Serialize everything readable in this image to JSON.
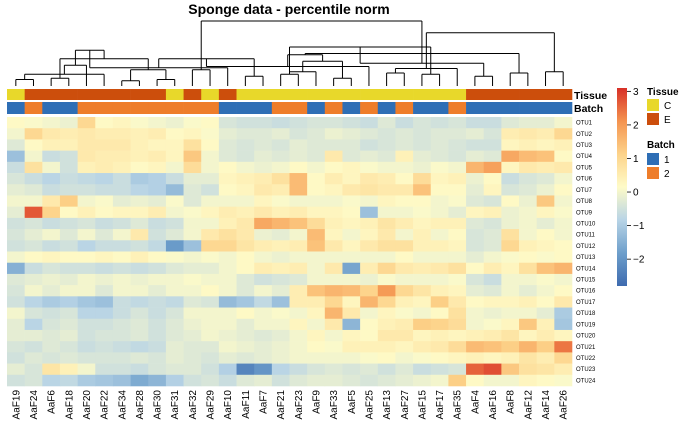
{
  "chart_data": {
    "type": "heatmap",
    "title": "Sponge data - percentile norm",
    "columns": [
      "AaF19",
      "AaF24",
      "AaF6",
      "AaF18",
      "AaF20",
      "AaF22",
      "AaF34",
      "AaF28",
      "AaF30",
      "AaF31",
      "AaF32",
      "AaF29",
      "AaF10",
      "AaF11",
      "AaF7",
      "AaF21",
      "AaF23",
      "AaF9",
      "AaF33",
      "AaF5",
      "AaF25",
      "AaF13",
      "AaF27",
      "AaF15",
      "AaF17",
      "AaF35",
      "AaF4",
      "AaF16",
      "AaF8",
      "AaF12",
      "AaF14",
      "AaF26"
    ],
    "rows": [
      "OTU1",
      "OTU2",
      "OTU3",
      "OTU4",
      "OTU5",
      "OTU6",
      "OTU7",
      "OTU8",
      "OTU9",
      "OTU10",
      "OTU11",
      "OTU12",
      "OTU13",
      "OTU14",
      "OTU15",
      "OTU16",
      "OTU17",
      "OTU18",
      "OTU19",
      "OTU20",
      "OTU21",
      "OTU22",
      "OTU23",
      "OTU24"
    ],
    "values": [
      [
        0.2,
        0.1,
        0.0,
        -0.1,
        1.0,
        0.2,
        0.3,
        0.1,
        0.0,
        -0.1,
        0.1,
        0.2,
        -0.4,
        -0.5,
        -0.5,
        -0.6,
        -0.5,
        -0.4,
        -0.4,
        -0.5,
        -0.6,
        -0.3,
        -0.6,
        -0.4,
        -0.5,
        -0.4,
        -0.6,
        -0.6,
        -0.3,
        -0.2,
        -0.2,
        0.0
      ],
      [
        0.0,
        1.0,
        0.6,
        0.5,
        0.6,
        0.5,
        0.5,
        0.4,
        0.5,
        0.2,
        0.3,
        0.1,
        -0.2,
        -0.3,
        -0.3,
        -0.2,
        -0.4,
        -0.3,
        -0.1,
        -0.2,
        -0.3,
        -0.4,
        -0.3,
        -0.4,
        -0.3,
        -0.3,
        -0.2,
        -0.4,
        0.5,
        0.6,
        0.5,
        1.0
      ],
      [
        -0.3,
        0.2,
        0.4,
        0.4,
        0.6,
        0.6,
        0.6,
        0.4,
        0.3,
        0.3,
        0.8,
        0.2,
        -0.3,
        -0.4,
        -0.3,
        -0.4,
        -0.2,
        -0.3,
        -0.3,
        -0.3,
        -0.5,
        -0.4,
        -0.3,
        -0.4,
        -0.3,
        -0.4,
        -0.5,
        -0.5,
        0.3,
        0.4,
        0.3,
        0.4
      ],
      [
        -1.2,
        0.0,
        -0.6,
        -0.5,
        0.6,
        0.5,
        0.5,
        0.4,
        0.5,
        0.3,
        1.3,
        0.0,
        -0.3,
        -0.4,
        -0.2,
        -0.3,
        -0.2,
        -0.3,
        0.6,
        -0.3,
        -0.2,
        -0.3,
        0.4,
        -0.2,
        -0.3,
        -0.4,
        -0.2,
        -0.3,
        1.8,
        1.5,
        1.4,
        0.2
      ],
      [
        -0.6,
        0.8,
        0.0,
        -0.5,
        0.4,
        0.5,
        0.4,
        0.2,
        0.3,
        0.0,
        0.9,
        0.0,
        0.2,
        0.0,
        -0.1,
        0.0,
        0.2,
        0.0,
        0.2,
        0.3,
        0.1,
        0.0,
        0.0,
        -0.1,
        0.1,
        0.0,
        1.6,
        1.9,
        0.3,
        0.6,
        0.5,
        0.6
      ],
      [
        -0.4,
        -0.6,
        -0.8,
        -0.6,
        -0.7,
        -0.8,
        -0.6,
        -1.0,
        -0.9,
        -0.6,
        -0.2,
        -0.2,
        0.3,
        0.4,
        0.5,
        0.8,
        1.5,
        0.2,
        0.5,
        0.3,
        0.6,
        0.5,
        0.2,
        0.9,
        0.3,
        0.4,
        -0.1,
        0.2,
        -0.6,
        -0.4,
        -0.3,
        0.0
      ],
      [
        -0.2,
        -0.3,
        -0.6,
        -0.5,
        -0.5,
        -0.6,
        -0.6,
        -0.8,
        -0.9,
        -1.3,
        -0.3,
        -0.5,
        0.2,
        0.3,
        0.6,
        0.5,
        1.5,
        0.2,
        0.3,
        0.6,
        0.7,
        0.6,
        0.6,
        1.4,
        0.2,
        0.2,
        -0.2,
        0.3,
        -0.4,
        -0.3,
        -0.1,
        0.2
      ],
      [
        0.0,
        0.0,
        0.6,
        1.2,
        0.0,
        0.1,
        -0.2,
        -0.1,
        -0.2,
        0.1,
        -0.3,
        0.0,
        0.0,
        0.0,
        0.3,
        0.1,
        0.0,
        0.0,
        0.0,
        0.1,
        0.0,
        0.3,
        0.2,
        0.2,
        0.0,
        0.1,
        -0.3,
        -0.4,
        0.2,
        -0.1,
        1.3,
        0.0
      ],
      [
        -0.2,
        2.7,
        1.1,
        0.2,
        0.4,
        0.2,
        0.3,
        0.3,
        0.5,
        0.0,
        0.1,
        0.3,
        0.5,
        0.4,
        0.6,
        0.4,
        0.5,
        0.3,
        0.3,
        0.2,
        -1.2,
        0.0,
        0.0,
        0.1,
        0.0,
        -0.2,
        0.3,
        0.4,
        -0.1,
        0.0,
        0.3,
        0.1
      ],
      [
        -0.5,
        -0.4,
        -0.6,
        -0.5,
        -0.4,
        -0.6,
        -0.5,
        -0.3,
        -0.6,
        -0.5,
        0.0,
        0.0,
        0.4,
        0.6,
        1.8,
        1.6,
        1.4,
        0.9,
        0.4,
        0.3,
        0.4,
        0.7,
        0.5,
        0.3,
        0.4,
        0.4,
        -0.3,
        -0.4,
        -0.1,
        0.0,
        -0.2,
        0.0
      ],
      [
        -0.4,
        -0.2,
        0.0,
        -0.3,
        0.0,
        -0.3,
        0.0,
        0.6,
        -0.5,
        -0.3,
        0.0,
        0.6,
        0.8,
        0.6,
        -0.1,
        -0.2,
        0.0,
        1.5,
        0.3,
        0.0,
        0.3,
        0.6,
        0.0,
        0.4,
        0.0,
        0.2,
        -0.4,
        -0.3,
        0.8,
        0.0,
        0.2,
        0.0
      ],
      [
        -0.5,
        -0.4,
        -0.6,
        -0.5,
        -0.8,
        -0.6,
        -0.6,
        -0.5,
        -0.7,
        -1.9,
        -1.2,
        1.0,
        1.0,
        0.7,
        0.5,
        0.4,
        0.5,
        1.4,
        0.6,
        0.3,
        0.6,
        0.8,
        0.8,
        0.4,
        0.4,
        0.3,
        -0.4,
        -0.3,
        1.0,
        0.4,
        0.3,
        0.2
      ],
      [
        0.0,
        0.2,
        0.3,
        0.2,
        0.2,
        0.3,
        0.2,
        0.4,
        0.2,
        0.1,
        0.0,
        0.1,
        0.0,
        0.2,
        0.0,
        -0.1,
        0.0,
        0.0,
        0.0,
        0.0,
        0.0,
        0.0,
        0.2,
        0.0,
        0.0,
        0.0,
        -0.2,
        0.0,
        0.1,
        0.2,
        0.1,
        0.2
      ],
      [
        -1.5,
        -0.6,
        -0.4,
        -0.5,
        -0.5,
        -0.6,
        -0.5,
        -0.6,
        -0.5,
        -0.3,
        -0.2,
        -0.2,
        0.0,
        0.2,
        0.5,
        0.4,
        0.5,
        0.0,
        0.6,
        -1.7,
        0.5,
        1.0,
        0.6,
        0.5,
        0.6,
        0.8,
        0.2,
        0.5,
        0.3,
        0.8,
        1.4,
        1.6
      ],
      [
        -0.3,
        -0.2,
        -0.1,
        -0.2,
        0.0,
        -0.1,
        0.0,
        -0.1,
        0.0,
        0.0,
        0.1,
        0.0,
        0.0,
        -0.3,
        -0.5,
        -0.4,
        -0.3,
        0.0,
        0.0,
        0.0,
        -0.1,
        0.1,
        0.0,
        0.0,
        0.0,
        0.1,
        -0.4,
        -0.6,
        0.0,
        0.0,
        0.1,
        0.0
      ],
      [
        -0.4,
        0.0,
        -0.2,
        0.0,
        0.0,
        -0.3,
        0.0,
        0.0,
        -0.2,
        0.0,
        0.0,
        0.2,
        0.0,
        -0.3,
        0.0,
        -0.2,
        0.5,
        1.4,
        1.6,
        1.5,
        1.1,
        2.0,
        1.0,
        0.7,
        0.4,
        0.3,
        -0.2,
        -0.3,
        0.0,
        -0.2,
        0.0,
        0.2
      ],
      [
        -0.5,
        -0.8,
        -1.0,
        -0.9,
        -1.1,
        -1.2,
        -0.6,
        -0.7,
        -0.6,
        -0.7,
        -0.3,
        -0.4,
        -1.3,
        -1.1,
        -0.7,
        -1.2,
        0.5,
        0.5,
        1.0,
        0.3,
        1.6,
        1.0,
        0.4,
        0.3,
        1.2,
        0.6,
        0.2,
        0.3,
        0.3,
        0.4,
        0.2,
        0.6
      ],
      [
        0.0,
        -0.4,
        -0.5,
        -0.4,
        -0.8,
        -0.8,
        -0.6,
        -0.4,
        -0.6,
        -0.4,
        0.0,
        0.0,
        0.0,
        0.2,
        0.0,
        0.1,
        0.0,
        0.3,
        1.6,
        0.6,
        0.0,
        0.3,
        0.1,
        0.0,
        0.2,
        0.8,
        0.0,
        -0.1,
        0.0,
        0.0,
        -0.2,
        -1.0
      ],
      [
        -0.2,
        -0.8,
        -0.4,
        -0.3,
        -0.5,
        -0.5,
        -0.4,
        -0.3,
        -0.5,
        -0.3,
        -0.1,
        0.0,
        0.0,
        -0.2,
        0.0,
        0.0,
        0.3,
        0.0,
        0.6,
        -1.4,
        0.2,
        0.4,
        0.5,
        1.2,
        1.1,
        0.9,
        0.0,
        0.1,
        0.3,
        1.3,
        0.4,
        -1.1
      ],
      [
        -0.2,
        -0.2,
        -0.3,
        -0.2,
        -0.5,
        -0.4,
        -0.4,
        -0.3,
        -0.5,
        -0.3,
        -0.2,
        0.0,
        -0.1,
        -0.2,
        -0.3,
        -0.2,
        0.0,
        0.3,
        0.0,
        0.3,
        0.2,
        0.6,
        0.6,
        0.3,
        0.4,
        0.3,
        0.4,
        0.5,
        0.7,
        0.3,
        0.5,
        0.3
      ],
      [
        -0.4,
        -0.5,
        -0.3,
        -0.4,
        -0.6,
        -0.5,
        -0.6,
        -0.7,
        -0.6,
        -0.2,
        -0.3,
        -0.3,
        0.0,
        -0.1,
        -0.2,
        -0.1,
        0.0,
        0.2,
        0.1,
        0.4,
        0.4,
        0.4,
        0.3,
        0.5,
        0.6,
        0.9,
        1.5,
        1.4,
        1.2,
        1.6,
        1.2,
        2.4
      ],
      [
        -0.5,
        -0.3,
        -0.4,
        -0.3,
        -0.4,
        -0.4,
        -0.4,
        -0.3,
        -0.4,
        -0.2,
        -0.3,
        -0.4,
        -0.2,
        -0.3,
        -0.2,
        -0.1,
        0.0,
        0.0,
        0.0,
        0.0,
        0.1,
        0.2,
        0.0,
        0.1,
        0.2,
        0.3,
        0.4,
        0.3,
        0.4,
        0.7,
        0.5,
        1.0
      ],
      [
        -0.2,
        -0.4,
        0.7,
        0.4,
        0.0,
        -0.5,
        -0.5,
        -0.6,
        -0.4,
        -0.3,
        -0.3,
        -0.5,
        -0.9,
        -2.3,
        -2.0,
        -0.8,
        -0.6,
        -0.4,
        -0.3,
        -0.4,
        -0.3,
        -0.5,
        -0.3,
        -0.6,
        -0.5,
        -0.4,
        2.6,
        2.8,
        1.3,
        0.8,
        0.7,
        0.5
      ],
      [
        -0.5,
        -0.4,
        -0.8,
        -0.7,
        -1.0,
        -1.1,
        -1.2,
        -1.6,
        -1.4,
        -0.9,
        -0.5,
        -0.4,
        -0.6,
        -0.3,
        -0.2,
        -0.5,
        -0.3,
        -0.2,
        -0.2,
        -0.3,
        -0.4,
        -0.3,
        -0.2,
        -0.1,
        0.0,
        1.2,
        0.2,
        0.0,
        0.0,
        0.3,
        0.2,
        0.1
      ]
    ],
    "annotations": {
      "tissue": [
        "C",
        "E",
        "E",
        "E",
        "E",
        "E",
        "E",
        "E",
        "E",
        "C",
        "E",
        "C",
        "E",
        "C",
        "C",
        "C",
        "C",
        "C",
        "C",
        "C",
        "C",
        "C",
        "C",
        "C",
        "C",
        "C",
        "E",
        "E",
        "E",
        "E",
        "E",
        "E"
      ],
      "batch": [
        "1",
        "2",
        "1",
        "1",
        "2",
        "2",
        "2",
        "2",
        "2",
        "2",
        "2",
        "2",
        "1",
        "1",
        "1",
        "2",
        "2",
        "1",
        "2",
        "1",
        "2",
        "1",
        "2",
        "1",
        "1",
        "2",
        "1",
        "1",
        "1",
        "1",
        "1",
        "1"
      ]
    },
    "annotation_labels": {
      "tissue": "Tissue",
      "batch": "Batch"
    },
    "legend": {
      "tissue": {
        "title": "Tissue",
        "entries": [
          {
            "label": "C",
            "color": "#e8d82a"
          },
          {
            "label": "E",
            "color": "#cc4e0c"
          }
        ]
      },
      "batch": {
        "title": "Batch",
        "entries": [
          {
            "label": "1",
            "color": "#2e6eb5"
          },
          {
            "label": "2",
            "color": "#ee7d2a"
          }
        ]
      }
    },
    "colorbar": {
      "ticks": [
        -2,
        -1,
        0,
        1,
        2,
        3
      ],
      "range": [
        -2.8,
        3.1
      ],
      "colors": [
        "#3e6baf",
        "#6e9fcb",
        "#b8d4e6",
        "#fefbc8",
        "#fdd38a",
        "#f4934f",
        "#d73027"
      ]
    },
    "dendrogram": {
      "merges": [
        [
          0,
          1,
          0.1
        ],
        [
          2,
          3,
          0.12
        ],
        [
          6,
          7,
          0.08
        ],
        [
          8,
          9,
          0.1
        ],
        [
          5,
          32,
          0.18
        ],
        [
          34,
          35,
          0.25
        ],
        [
          4,
          36,
          0.32
        ],
        [
          33,
          37,
          0.42
        ],
        [
          10,
          11,
          0.25
        ],
        [
          38,
          39,
          0.55
        ],
        [
          13,
          14,
          0.15
        ],
        [
          12,
          41,
          0.28
        ],
        [
          15,
          16,
          0.18
        ],
        [
          42,
          43,
          0.42
        ],
        [
          18,
          19,
          0.12
        ],
        [
          17,
          44,
          0.22
        ],
        [
          20,
          45,
          0.3
        ],
        [
          21,
          22,
          0.2
        ],
        [
          46,
          47,
          0.38
        ],
        [
          23,
          24,
          0.18
        ],
        [
          25,
          49,
          0.27
        ],
        [
          48,
          50,
          0.48
        ],
        [
          44,
          51,
          0.6
        ],
        [
          26,
          27,
          0.15
        ],
        [
          28,
          29,
          0.2
        ],
        [
          30,
          31,
          0.22
        ],
        [
          54,
          55,
          0.35
        ],
        [
          53,
          56,
          0.5
        ],
        [
          52,
          57,
          0.82
        ],
        [
          40,
          58,
          1.0
        ]
      ]
    }
  }
}
